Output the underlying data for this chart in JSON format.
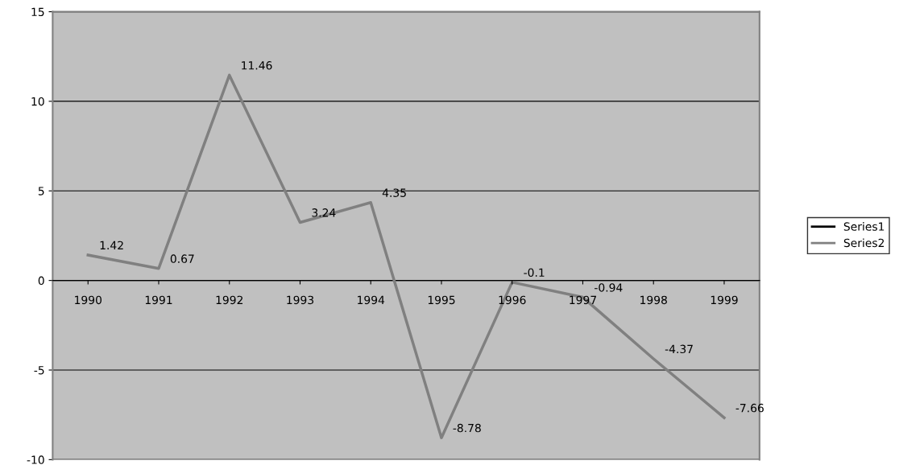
{
  "chart_data": {
    "type": "line",
    "categories": [
      "1990",
      "1991",
      "1992",
      "1993",
      "1994",
      "1995",
      "1996",
      "1997",
      "1998",
      "1999"
    ],
    "series": [
      {
        "name": "Series1",
        "color": "#000000",
        "values": [
          null,
          null,
          null,
          null,
          null,
          null,
          null,
          null,
          null,
          null
        ]
      },
      {
        "name": "Series2",
        "color": "#808080",
        "values": [
          1.42,
          0.67,
          11.46,
          3.24,
          4.35,
          -8.78,
          -0.1,
          -0.94,
          -4.37,
          -7.66
        ]
      }
    ],
    "ylim": [
      -10,
      15
    ],
    "yticks": [
      -10,
      -5,
      0,
      5,
      10,
      15
    ],
    "grid": "y",
    "legend": "right",
    "marker": "none",
    "line_style": "solid",
    "data_labels": true
  }
}
